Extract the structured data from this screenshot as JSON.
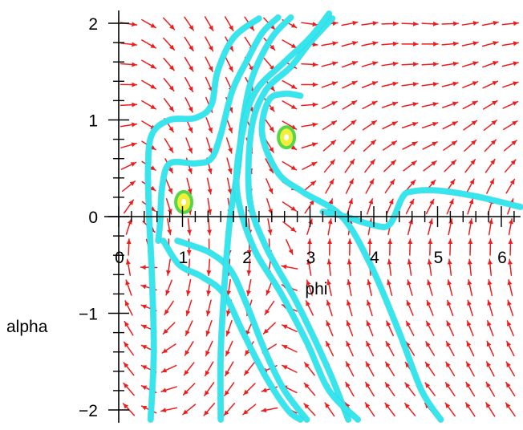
{
  "chart_data": {
    "type": "scatter",
    "subtype": "direction-field-phase-portrait",
    "xlabel": "phi",
    "ylabel": "alpha",
    "xlim": [
      0,
      6.3
    ],
    "ylim": [
      -2.1,
      2.1
    ],
    "x_ticks": [
      0,
      1,
      2,
      3,
      4,
      5,
      6
    ],
    "x_tick_labels": [
      "0",
      "1",
      "2",
      "3",
      "4",
      "5",
      "6"
    ],
    "y_ticks": [
      -2,
      -1,
      0,
      1,
      2
    ],
    "y_tick_labels": [
      "−2",
      "−1",
      "0",
      "1",
      "2"
    ],
    "grid": false,
    "colors": {
      "vectors": "#ee1c1c",
      "trajectories": "#37e6ec",
      "equilibria_fill": "#f2ee3a",
      "equilibria_ring": "#56d64a"
    },
    "equilibria": [
      {
        "x": 1.02,
        "y": 0.15
      },
      {
        "x": 2.63,
        "y": 0.82
      }
    ],
    "trajectories": [
      [
        [
          0.5,
          -2.1
        ],
        [
          0.55,
          -1.4
        ],
        [
          0.52,
          -0.6
        ],
        [
          0.48,
          -0.05
        ],
        [
          0.46,
          0.5
        ],
        [
          0.52,
          0.85
        ],
        [
          0.8,
          1.0
        ],
        [
          1.2,
          1.02
        ],
        [
          1.45,
          1.15
        ],
        [
          1.55,
          1.5
        ],
        [
          1.8,
          1.85
        ],
        [
          2.2,
          2.05
        ]
      ],
      [
        [
          0.62,
          -0.25
        ],
        [
          0.65,
          -0.05
        ],
        [
          0.68,
          0.3
        ],
        [
          0.8,
          0.55
        ],
        [
          1.2,
          0.55
        ],
        [
          1.45,
          0.6
        ],
        [
          1.6,
          0.85
        ],
        [
          1.78,
          1.3
        ],
        [
          2.0,
          1.6
        ],
        [
          2.25,
          1.9
        ],
        [
          2.5,
          2.06
        ]
      ],
      [
        [
          0.92,
          -0.25
        ],
        [
          1.15,
          -0.3
        ],
        [
          1.45,
          -0.38
        ],
        [
          1.75,
          -0.55
        ],
        [
          2.0,
          -0.9
        ],
        [
          2.3,
          -1.4
        ],
        [
          2.6,
          -1.8
        ],
        [
          2.95,
          -2.1
        ]
      ],
      [
        [
          0.7,
          -0.25
        ],
        [
          0.95,
          -0.5
        ],
        [
          1.3,
          -0.62
        ],
        [
          1.65,
          -0.8
        ],
        [
          1.95,
          -1.2
        ],
        [
          2.3,
          -1.65
        ],
        [
          2.65,
          -2.0
        ],
        [
          2.85,
          -2.1
        ]
      ],
      [
        [
          1.6,
          -2.1
        ],
        [
          1.6,
          -1.4
        ],
        [
          1.67,
          -0.6
        ],
        [
          1.75,
          0.0
        ],
        [
          1.87,
          0.5
        ],
        [
          1.95,
          1.0
        ],
        [
          2.1,
          1.45
        ],
        [
          2.4,
          1.85
        ],
        [
          2.7,
          2.06
        ]
      ],
      [
        [
          3.6,
          -2.1
        ],
        [
          3.3,
          -1.6
        ],
        [
          2.8,
          -0.9
        ],
        [
          2.3,
          -0.3
        ],
        [
          2.05,
          0.2
        ],
        [
          2.08,
          0.9
        ],
        [
          2.3,
          1.3
        ],
        [
          2.7,
          1.55
        ],
        [
          3.0,
          1.8
        ],
        [
          3.35,
          2.05
        ]
      ],
      [
        [
          3.75,
          -2.1
        ],
        [
          3.3,
          -1.8
        ],
        [
          2.95,
          -1.3
        ],
        [
          2.55,
          -0.8
        ],
        [
          2.1,
          -0.3
        ],
        [
          1.85,
          0.3
        ],
        [
          1.95,
          0.9
        ],
        [
          2.15,
          1.3
        ],
        [
          2.6,
          1.6
        ],
        [
          3.0,
          1.85
        ],
        [
          3.3,
          2.1
        ]
      ],
      [
        [
          5.05,
          -2.1
        ],
        [
          4.75,
          -1.8
        ],
        [
          4.4,
          -1.2
        ],
        [
          3.95,
          -0.5
        ],
        [
          3.5,
          0.0
        ],
        [
          2.9,
          0.25
        ],
        [
          2.5,
          0.45
        ],
        [
          2.25,
          0.85
        ],
        [
          2.35,
          1.2
        ],
        [
          2.6,
          1.27
        ],
        [
          2.85,
          1.25
        ]
      ],
      [
        [
          3.2,
          0.05
        ],
        [
          3.55,
          0.0
        ],
        [
          4.0,
          -0.09
        ],
        [
          4.25,
          -0.08
        ],
        [
          4.45,
          0.2
        ],
        [
          4.6,
          0.26
        ],
        [
          5.0,
          0.27
        ],
        [
          5.6,
          0.21
        ],
        [
          6.3,
          0.1
        ]
      ]
    ]
  }
}
